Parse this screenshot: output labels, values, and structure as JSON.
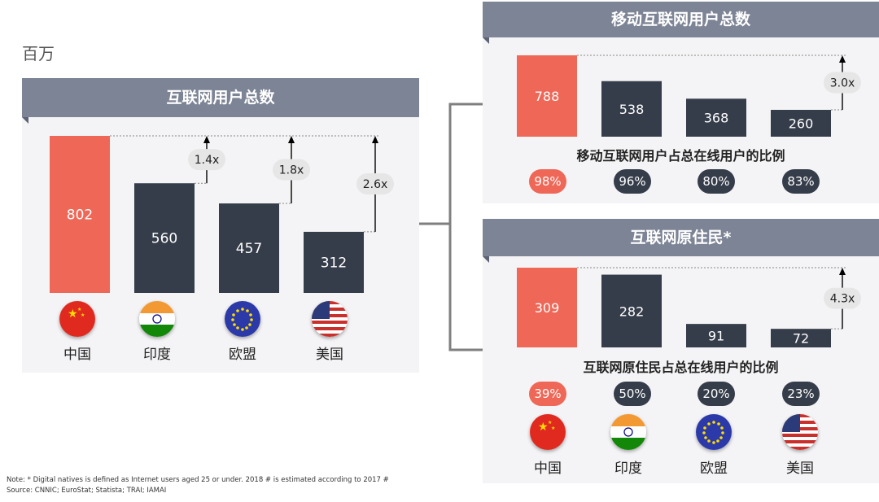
{
  "unit_label": "百万",
  "charts": {
    "internet": {
      "title": "互联网用户总数"
    },
    "mobile": {
      "title": "移动互联网用户总数",
      "share_title": "移动互联网用户占总在线用户的比例"
    },
    "natives": {
      "title": "互联网原住民*",
      "share_title": "互联网原住民占总在线用户的比例"
    }
  },
  "countries": [
    "中国",
    "印度",
    "欧盟",
    "美国"
  ],
  "flag_icons": [
    "china-flag-icon",
    "india-flag-icon",
    "eu-flag-icon",
    "usa-flag-icon"
  ],
  "colors": {
    "highlight": "#ee6757",
    "dark": "#363d4a",
    "header": "#7d8495",
    "bubble": "#e6e6e6"
  },
  "chart_data": [
    {
      "type": "bar",
      "title": "互联网用户总数",
      "categories": [
        "中国",
        "印度",
        "欧盟",
        "美国"
      ],
      "values": [
        802,
        560,
        457,
        312
      ],
      "ratios": [
        "1.4x",
        "1.8x",
        "2.6x"
      ],
      "ylim": [
        0,
        802
      ]
    },
    {
      "type": "bar",
      "title": "移动互联网用户总数",
      "categories": [
        "中国",
        "印度",
        "欧盟",
        "美国"
      ],
      "values": [
        788,
        538,
        368,
        260
      ],
      "ratios": [
        "3.0x"
      ],
      "share_title": "移动互联网用户占总在线用户的比例",
      "shares": [
        "98%",
        "96%",
        "80%",
        "83%"
      ],
      "ylim": [
        0,
        788
      ]
    },
    {
      "type": "bar",
      "title": "互联网原住民*",
      "categories": [
        "中国",
        "印度",
        "欧盟",
        "美国"
      ],
      "values": [
        309,
        282,
        91,
        72
      ],
      "ratios": [
        "4.3x"
      ],
      "share_title": "互联网原住民占总在线用户的比例",
      "shares": [
        "39%",
        "50%",
        "20%",
        "23%"
      ],
      "ylim": [
        0,
        309
      ]
    }
  ],
  "notes": {
    "line1": "Note: * Digital natives is defined as Internet users aged 25 or under. 2018 # is estimated according to 2017 #",
    "line2": "Source: CNNIC; EuroStat; Statista; TRAI; IAMAI"
  }
}
